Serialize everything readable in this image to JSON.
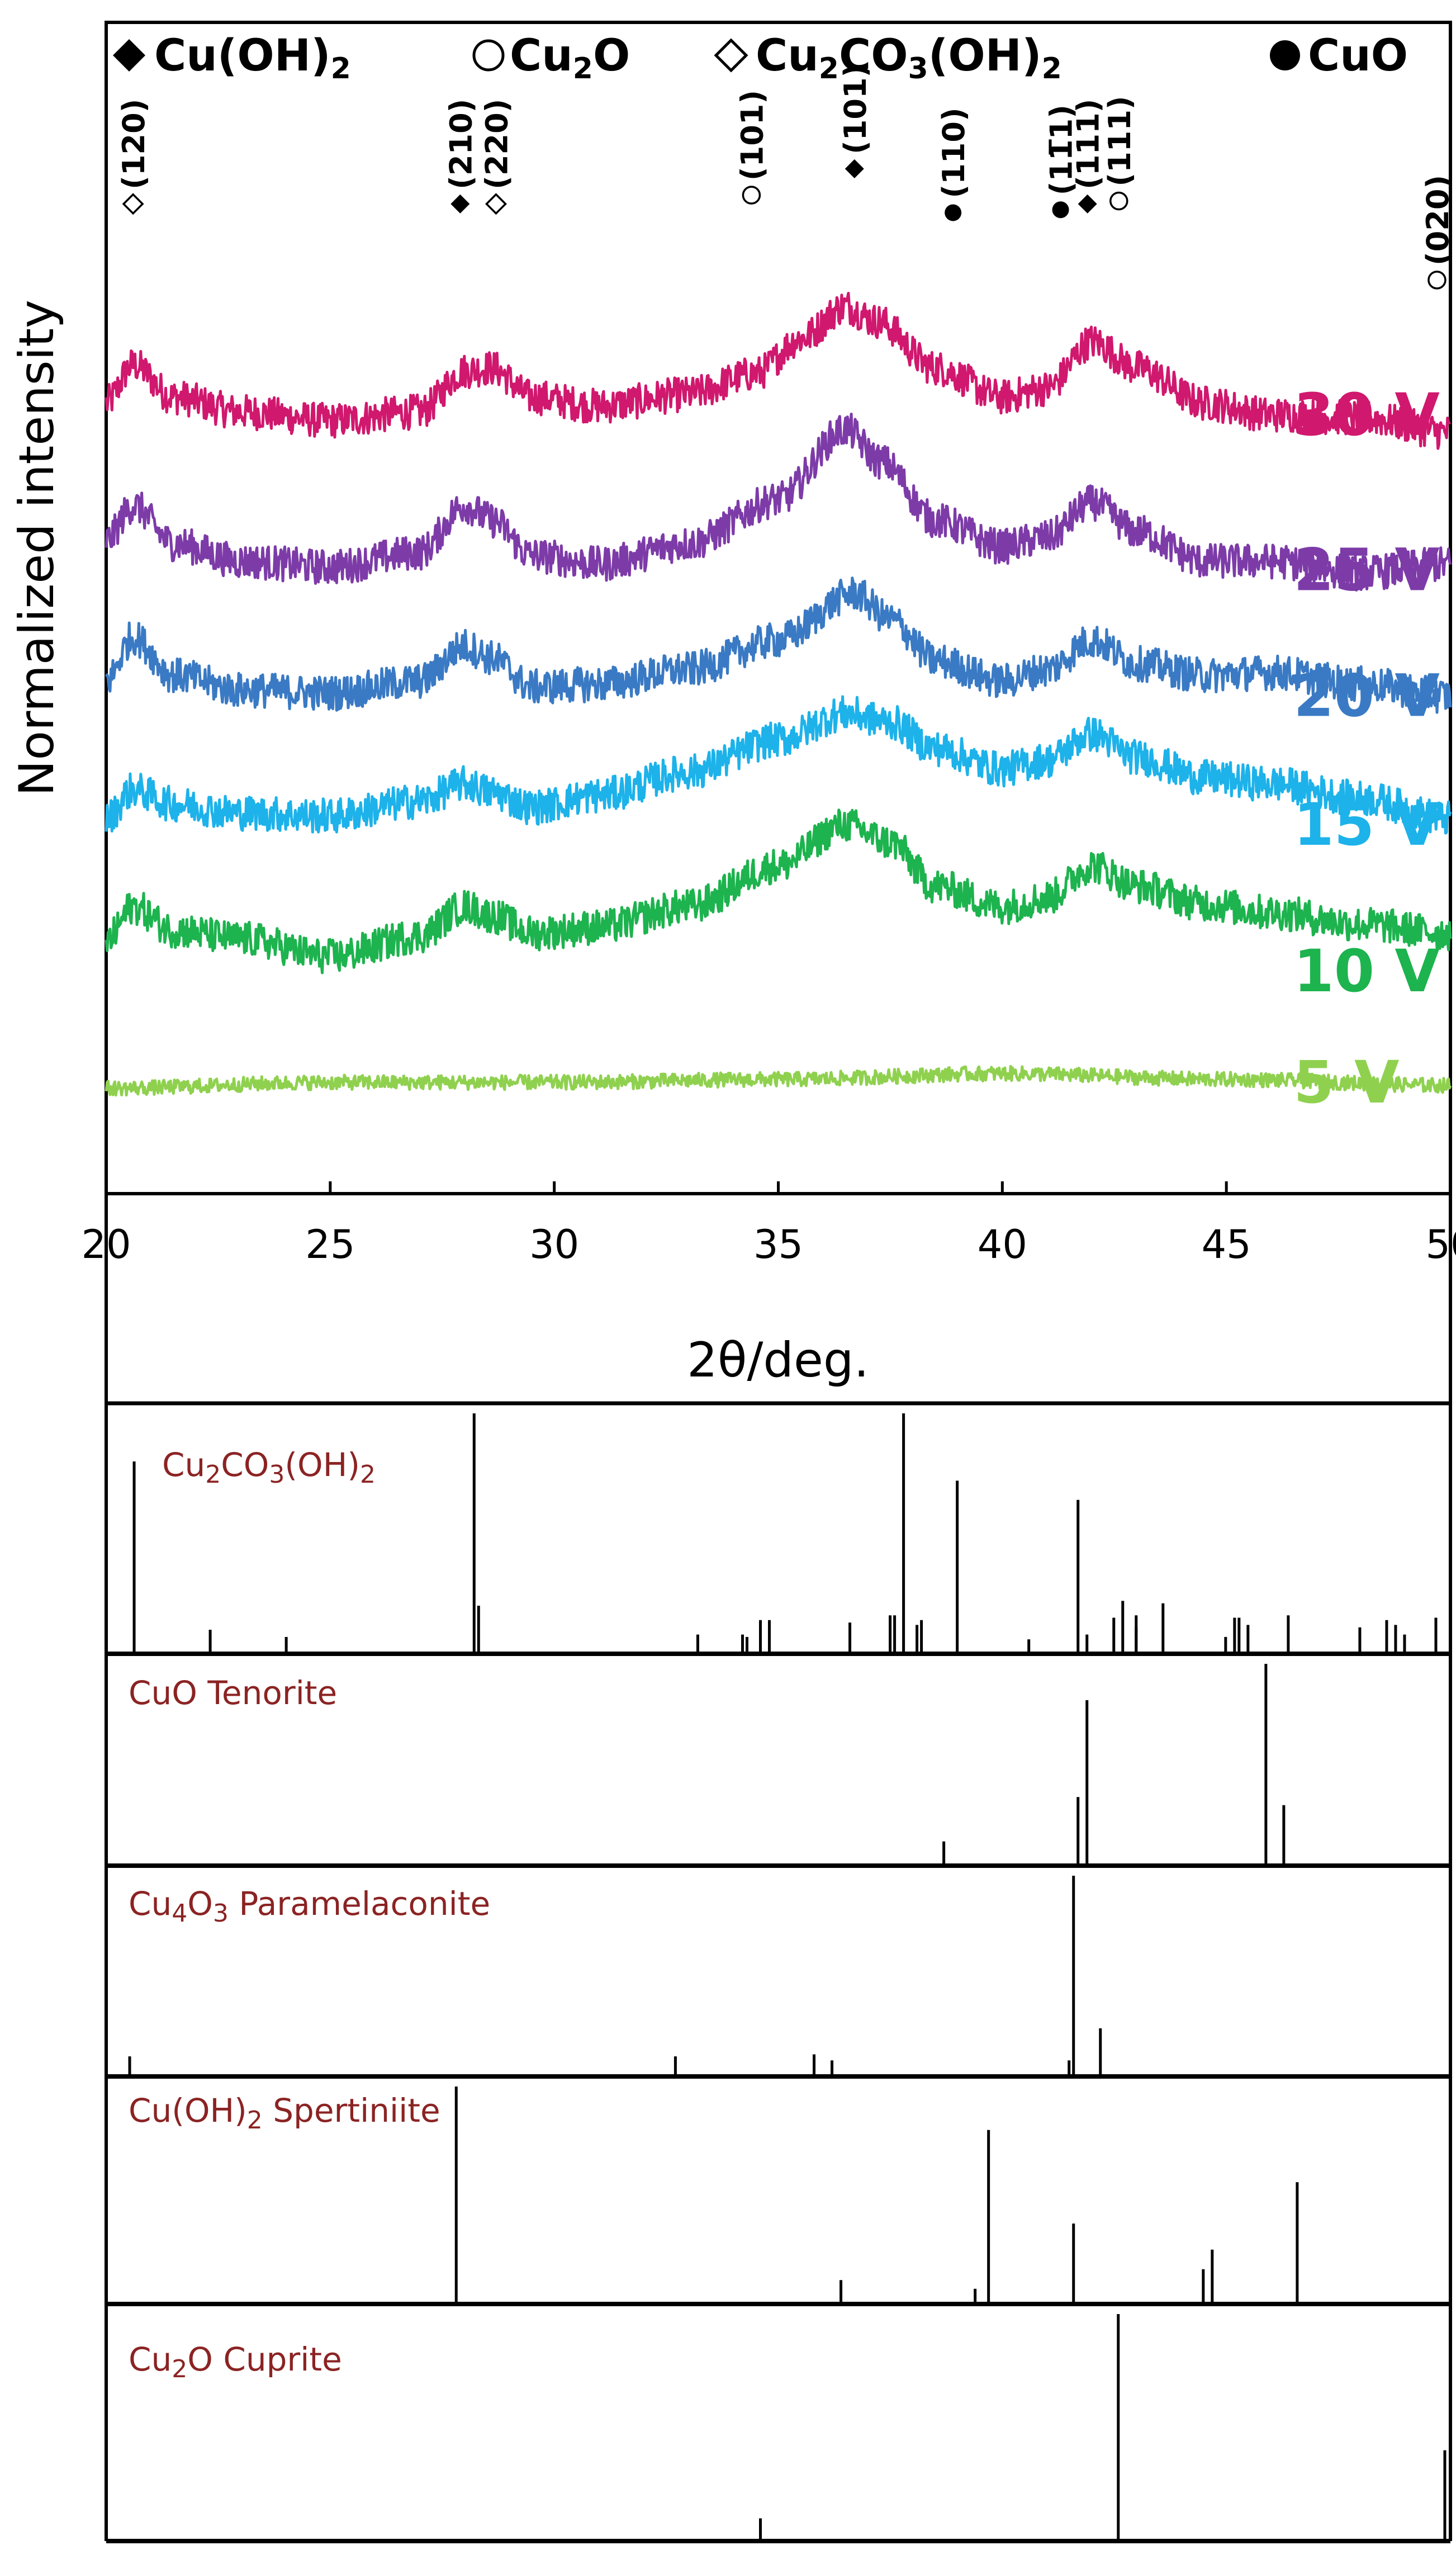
{
  "legend": [
    {
      "symbol": "filled-diamond",
      "text": "Cu(OH)",
      "sub": "2"
    },
    {
      "symbol": "open-circle",
      "text": "Cu",
      "sub": "2",
      "tail": "O"
    },
    {
      "symbol": "open-diamond",
      "text": "Cu",
      "sub": "2",
      "mid": "CO",
      "sub2": "3",
      "tail": "(OH)",
      "sub3": "2"
    },
    {
      "symbol": "filled-circle",
      "text": "CuO"
    }
  ],
  "peak_labels": [
    {
      "x": 20.6,
      "y": 33.8,
      "text": "(120)",
      "marker": "open-diamond"
    },
    {
      "x": 27.9,
      "y": 33.8,
      "text": "(210)",
      "marker": "filled-diamond"
    },
    {
      "x": 28.7,
      "y": 33.8,
      "text": "(220)",
      "marker": "open-diamond"
    },
    {
      "x": 34.4,
      "y": 34.1,
      "text": "(101)",
      "marker": "open-circle"
    },
    {
      "x": 36.7,
      "y": 35.0,
      "text": "(101)",
      "marker": "filled-diamond"
    },
    {
      "x": 38.9,
      "y": 33.5,
      "text": "(110)",
      "marker": "filled-circle"
    },
    {
      "x": 41.3,
      "y": 33.6,
      "text": "(11̅1)",
      "marker": "filled-circle"
    },
    {
      "x": 41.9,
      "y": 33.8,
      "text": "(111)",
      "marker": "filled-diamond"
    },
    {
      "x": 42.6,
      "y": 33.9,
      "text": "(111)",
      "marker": "open-circle"
    },
    {
      "x": 49.7,
      "y": 31.2,
      "text": "(020)",
      "marker": "open-circle"
    }
  ],
  "chart_data": [
    {
      "type": "line",
      "title": "",
      "xlabel": "2θ/deg.",
      "ylabel": "Normalized intensity",
      "xlim": [
        20,
        50
      ],
      "ylim": [
        0,
        40
      ],
      "xticks": [
        "20",
        "25",
        "30",
        "35",
        "40",
        "45",
        "50"
      ],
      "grid": false,
      "series": [
        {
          "name": "30 V",
          "color": "#d0186e",
          "baseline": 26.6,
          "noise": 0.6,
          "x": [
            20,
            20.6,
            21.5,
            23,
            25,
            27,
            28,
            28.6,
            29.5,
            31,
            33,
            34.5,
            35.5,
            36.5,
            37.2,
            38.5,
            40,
            41,
            42,
            43,
            44.5,
            46,
            48,
            50
          ],
          "y": [
            27.0,
            28.3,
            27.2,
            26.7,
            26.4,
            26.7,
            28.1,
            28.2,
            27.2,
            26.9,
            27.3,
            28.0,
            29.2,
            30.3,
            29.8,
            28.2,
            27.2,
            27.5,
            29.1,
            28.2,
            27.0,
            26.6,
            26.5,
            26.0
          ]
        },
        {
          "name": "25 V",
          "color": "#7d3ba8",
          "baseline": 21.3,
          "noise": 0.6,
          "x": [
            20,
            20.6,
            21.5,
            23,
            25,
            27,
            28,
            28.6,
            29.5,
            31,
            33,
            35,
            36.5,
            37.3,
            38.5,
            40,
            41,
            42,
            43,
            44.5,
            46,
            48,
            50
          ],
          "y": [
            22.3,
            23.5,
            22.2,
            21.6,
            21.4,
            21.9,
            23.5,
            23.0,
            21.8,
            21.5,
            22.2,
            23.7,
            26.1,
            25.0,
            23.0,
            22.1,
            22.4,
            23.6,
            22.6,
            21.6,
            21.6,
            21.2,
            21.5
          ]
        },
        {
          "name": "20 V",
          "color": "#3a7ac4",
          "baseline": 17.0,
          "noise": 0.6,
          "x": [
            20,
            20.6,
            21.5,
            23,
            25,
            27,
            28,
            28.6,
            29.5,
            31,
            33,
            35,
            36.7,
            37.5,
            38.5,
            40,
            41,
            42,
            43,
            44.5,
            46,
            48,
            50
          ],
          "y": [
            17.5,
            19.0,
            17.7,
            17.2,
            17.1,
            17.5,
            18.7,
            18.3,
            17.3,
            17.4,
            17.9,
            18.9,
            20.5,
            19.6,
            18.2,
            17.5,
            17.9,
            18.9,
            18.1,
            17.7,
            17.8,
            17.4,
            17.0
          ]
        },
        {
          "name": "15 V",
          "color": "#1db2ea",
          "baseline": 12.6,
          "noise": 0.6,
          "x": [
            20,
            20.6,
            21.5,
            23,
            25,
            27,
            28,
            28.6,
            29.5,
            31,
            33,
            35,
            36.5,
            37.5,
            38.5,
            40,
            41,
            42,
            43,
            44.5,
            46,
            48,
            50
          ],
          "y": [
            12.8,
            13.8,
            13.3,
            13.0,
            12.9,
            13.4,
            14.0,
            13.7,
            13.2,
            13.6,
            14.4,
            15.5,
            16.4,
            16.1,
            15.2,
            14.5,
            14.8,
            15.7,
            14.9,
            14.2,
            14.0,
            13.5,
            12.8
          ]
        },
        {
          "name": "10 V",
          "color": "#1db34e",
          "baseline": 7.6,
          "noise": 0.6,
          "x": [
            20,
            20.6,
            21.5,
            23,
            25,
            27,
            28,
            28.6,
            29.5,
            31,
            33,
            35,
            36.5,
            37.5,
            38.5,
            40,
            41,
            42,
            43,
            44.5,
            46,
            48,
            50
          ],
          "y": [
            8.6,
            9.8,
            9.0,
            8.7,
            8.1,
            8.8,
            9.8,
            9.5,
            8.9,
            9.1,
            9.8,
            11.2,
            12.6,
            12.0,
            10.5,
            9.8,
            10.1,
            11.2,
            10.5,
            9.9,
            9.6,
            9.2,
            8.9
          ]
        },
        {
          "name": "5 V",
          "color": "#8fd14f",
          "baseline": 3.8,
          "noise": 0.25,
          "x": [
            20,
            25,
            30,
            35,
            40,
            45,
            50
          ],
          "y": [
            3.6,
            3.8,
            3.8,
            3.9,
            4.1,
            3.9,
            3.7
          ]
        }
      ],
      "series_label_x": 46.5
    },
    {
      "type": "bar",
      "title": "Cu2CO3(OH)2",
      "xlim": [
        20,
        50
      ],
      "ylim": [
        0,
        100
      ],
      "x": [
        20.6,
        22.3,
        24.0,
        28.2,
        28.3,
        33.2,
        34.2,
        34.3,
        34.6,
        34.8,
        36.6,
        37.5,
        37.6,
        37.8,
        38.1,
        38.2,
        39.0,
        40.6,
        41.7,
        41.9,
        42.5,
        42.7,
        43.0,
        43.0,
        43.6,
        45.0,
        45.2,
        45.3,
        45.5,
        46.4,
        48.0,
        48.6,
        48.8,
        49.0,
        49.7
      ],
      "y": [
        80,
        10,
        7,
        100,
        20,
        8,
        8,
        7,
        14,
        14,
        13,
        16,
        16,
        100,
        12,
        14,
        72,
        6,
        64,
        8,
        15,
        22,
        16,
        11,
        21,
        7,
        15,
        15,
        12,
        16,
        11,
        14,
        12,
        8,
        15
      ]
    },
    {
      "type": "bar",
      "title": "CuO Tenorite",
      "xlim": [
        20,
        50
      ],
      "ylim": [
        0,
        100
      ],
      "x": [
        38.7,
        41.7,
        41.9,
        45.9,
        46.3
      ],
      "y": [
        12,
        34,
        82,
        100,
        30
      ]
    },
    {
      "type": "bar",
      "title": "Cu4O3 Paramelaconite",
      "xlim": [
        20,
        50
      ],
      "ylim": [
        0,
        100
      ],
      "x": [
        20.5,
        32.7,
        35.8,
        36.2,
        41.5,
        41.6,
        42.2
      ],
      "y": [
        10,
        10,
        11,
        8,
        8,
        100,
        24
      ]
    },
    {
      "type": "bar",
      "title": "Cu(OH)2 Spertiniite",
      "xlim": [
        20,
        50
      ],
      "ylim": [
        0,
        100
      ],
      "x": [
        27.8,
        36.4,
        39.4,
        39.7,
        41.6,
        44.5,
        44.7,
        46.6
      ],
      "y": [
        100,
        11,
        7,
        80,
        37,
        16,
        25,
        56
      ]
    },
    {
      "type": "bar",
      "title": "Cu2O Cuprite",
      "xlim": [
        20,
        50
      ],
      "ylim": [
        0,
        100
      ],
      "x": [
        34.6,
        42.6,
        49.9
      ],
      "y": [
        10,
        100,
        40
      ]
    }
  ]
}
